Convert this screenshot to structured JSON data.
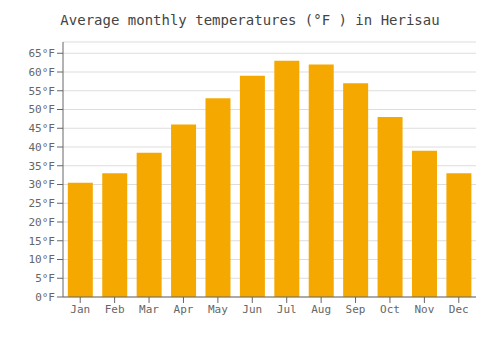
{
  "chart_data": {
    "type": "bar",
    "title": "Average monthly temperatures (°F ) in Herisau",
    "categories": [
      "Jan",
      "Feb",
      "Mar",
      "Apr",
      "May",
      "Jun",
      "Jul",
      "Aug",
      "Sep",
      "Oct",
      "Nov",
      "Dec"
    ],
    "values": [
      30.5,
      33.0,
      38.5,
      46.0,
      53.0,
      59.0,
      63.0,
      62.0,
      57.0,
      48.0,
      39.0,
      33.0
    ],
    "color": "#F5A800",
    "ylim": [
      0,
      68
    ],
    "yticks": [
      {
        "value": 0,
        "label": "0°F"
      },
      {
        "value": 5,
        "label": "5°F"
      },
      {
        "value": 10,
        "label": "10°F"
      },
      {
        "value": 15,
        "label": "15°F"
      },
      {
        "value": 20,
        "label": "20°F"
      },
      {
        "value": 25,
        "label": "25°F"
      },
      {
        "value": 30,
        "label": "30°F"
      },
      {
        "value": 35,
        "label": "35°F"
      },
      {
        "value": 40,
        "label": "40°F"
      },
      {
        "value": 45,
        "label": "45°F"
      },
      {
        "value": 50,
        "label": "50°F"
      },
      {
        "value": 55,
        "label": "55°F"
      },
      {
        "value": 60,
        "label": "60°F"
      },
      {
        "value": 65,
        "label": "65°F"
      }
    ],
    "grid": true
  }
}
